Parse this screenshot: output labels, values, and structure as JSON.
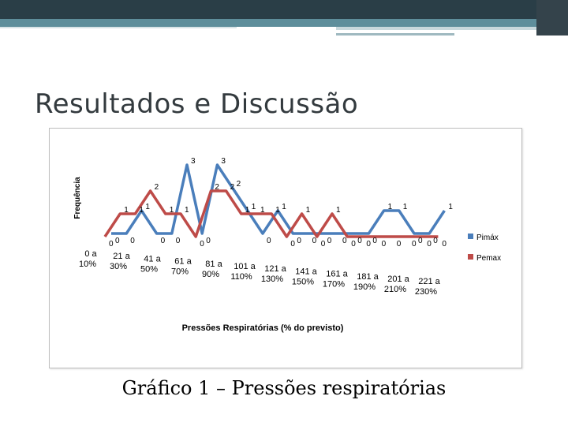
{
  "slide": {
    "title": "Resultados e Discussão",
    "caption": "Gráfico 1 – Pressões respiratórias"
  },
  "colors": {
    "pimax": "#4a7ebb",
    "pemax": "#be4b48",
    "title": "#333a3e",
    "top_dark": "#2a3e47",
    "top_teal": "#5e8e9b"
  },
  "chart_data": {
    "type": "line",
    "title": "",
    "xlabel": "Pressões Respiratórias (% do previsto)",
    "ylabel": "Frequência",
    "ylim": [
      0,
      3
    ],
    "grid": false,
    "legend": "right",
    "categories": [
      "0 a 10%",
      "",
      "21 a 30%",
      "",
      "41 a 50%",
      "",
      "61 a 70%",
      "",
      "81 a 90%",
      "",
      "101 a 110%",
      "",
      "121 a 130%",
      "",
      "141 a 150%",
      "",
      "161 a 170%",
      "",
      "181 a 190%",
      "",
      "201 a 210%",
      "",
      "221 a 230%"
    ],
    "series": [
      {
        "name": "Pimáx",
        "values": [
          0,
          0,
          1,
          0,
          0,
          3,
          0,
          3,
          2,
          1,
          0,
          1,
          0,
          0,
          0,
          0,
          0,
          0,
          1,
          1,
          0,
          0,
          1
        ]
      },
      {
        "name": "Pemax",
        "values": [
          0,
          1,
          1,
          2,
          1,
          1,
          0,
          2,
          2,
          1,
          1,
          1,
          0,
          1,
          0,
          1,
          0,
          0,
          0,
          0,
          0,
          0,
          0
        ]
      }
    ]
  }
}
